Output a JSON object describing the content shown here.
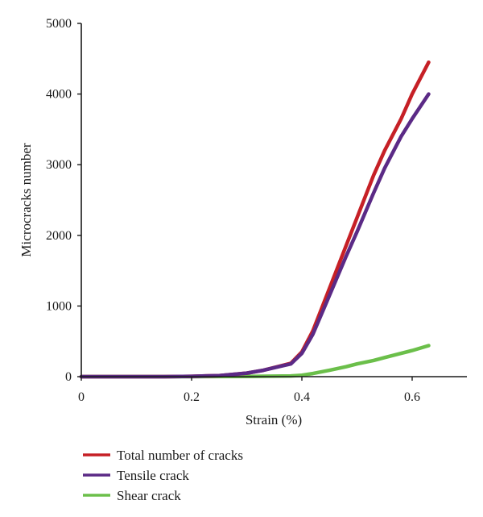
{
  "chart_data": {
    "type": "line",
    "xlabel": "Strain (%)",
    "ylabel": "Microcracks number",
    "xlim": [
      0,
      0.7
    ],
    "ylim": [
      0,
      5000
    ],
    "xticks": [
      0,
      0.2,
      0.4,
      0.6
    ],
    "xtick_labels": [
      "0",
      "0.2",
      "0.4",
      "0.6"
    ],
    "yticks": [
      0,
      1000,
      2000,
      3000,
      4000,
      5000
    ],
    "ytick_labels": [
      "0",
      "1000",
      "2000",
      "3000",
      "4000",
      "5000"
    ],
    "grid": false,
    "legend_position": "bottom-left",
    "series": [
      {
        "name": "Total number of cracks",
        "color": "#c62026",
        "x": [
          0,
          0.15,
          0.2,
          0.25,
          0.3,
          0.33,
          0.36,
          0.38,
          0.4,
          0.42,
          0.45,
          0.48,
          0.5,
          0.53,
          0.55,
          0.58,
          0.6,
          0.63
        ],
        "y": [
          0,
          0,
          5,
          15,
          50,
          90,
          150,
          190,
          350,
          650,
          1250,
          1850,
          2250,
          2850,
          3200,
          3650,
          4000,
          4450
        ]
      },
      {
        "name": "Tensile crack",
        "color": "#5b2a86",
        "x": [
          0,
          0.15,
          0.2,
          0.25,
          0.3,
          0.33,
          0.36,
          0.38,
          0.4,
          0.42,
          0.45,
          0.48,
          0.5,
          0.53,
          0.55,
          0.58,
          0.6,
          0.63
        ],
        "y": [
          0,
          0,
          5,
          15,
          50,
          90,
          145,
          180,
          330,
          600,
          1150,
          1700,
          2050,
          2600,
          2950,
          3400,
          3650,
          4000
        ]
      },
      {
        "name": "Shear crack",
        "color": "#6bbf4a",
        "x": [
          0,
          0.2,
          0.3,
          0.38,
          0.4,
          0.42,
          0.45,
          0.48,
          0.5,
          0.53,
          0.55,
          0.58,
          0.6,
          0.63
        ],
        "y": [
          0,
          0,
          3,
          10,
          20,
          45,
          90,
          140,
          180,
          230,
          270,
          330,
          370,
          440
        ]
      }
    ]
  }
}
